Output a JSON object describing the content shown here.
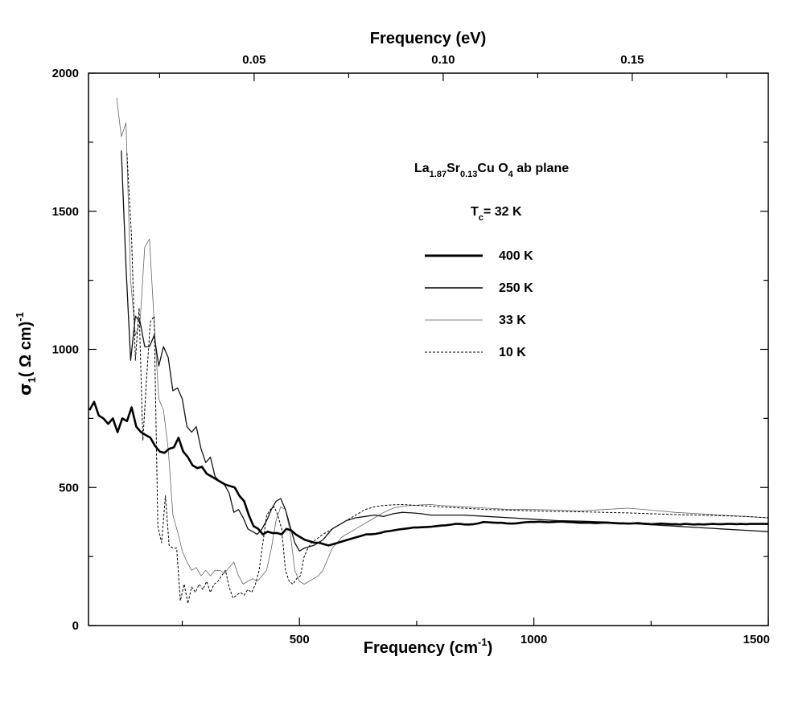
{
  "chart_data": {
    "type": "line",
    "xlabel": "Frequency (cm",
    "xlabel_sup": "-1",
    "xlabel_end": ")",
    "top_xlabel": "Frequency (eV)",
    "ylabel_sigma": "σ",
    "ylabel_sub": "1",
    "ylabel_mid": "( Ω cm)",
    "ylabel_sup": "-1",
    "xlim": [
      50,
      1500
    ],
    "ylim": [
      0,
      2000
    ],
    "x_ticks": [
      500,
      1000,
      1500
    ],
    "x_tick_labels": [
      "500",
      "1000",
      "1500"
    ],
    "y_ticks": [
      0,
      500,
      1000,
      1500,
      2000
    ],
    "y_tick_labels": [
      "0",
      "500",
      "1000",
      "1500",
      "2000"
    ],
    "top_ticks_ev": [
      0.05,
      0.1,
      0.15
    ],
    "top_tick_labels": [
      "0.05",
      "0.10",
      "0.15"
    ],
    "grid": false,
    "legend_position": "right-center",
    "annotation": {
      "compound": {
        "la": "La",
        "la_sub": "1.87",
        "sr": "Sr",
        "sr_sub": "0.13",
        "cuo": "Cu O",
        "o_sub": "4",
        "rest": " ab plane"
      },
      "tc": {
        "t": "T",
        "sub": "c",
        "rest": "= 32 K"
      }
    },
    "series": [
      {
        "name": "400 K",
        "style": "thick",
        "x": [
          52,
          62,
          72,
          82,
          92,
          102,
          112,
          122,
          132,
          142,
          152,
          162,
          172,
          182,
          192,
          202,
          212,
          222,
          232,
          242,
          252,
          262,
          272,
          282,
          292,
          302,
          312,
          322,
          332,
          342,
          352,
          362,
          372,
          382,
          392,
          402,
          412,
          422,
          432,
          442,
          452,
          462,
          472,
          482,
          492,
          502,
          512,
          522,
          532,
          542,
          552,
          562,
          572,
          582,
          592,
          602,
          612,
          622,
          632,
          642,
          652,
          662,
          672,
          682,
          692,
          702,
          712,
          722,
          732,
          742,
          752,
          762,
          772,
          782,
          792,
          802,
          812,
          822,
          832,
          842,
          852,
          862,
          872,
          882,
          892,
          902,
          912,
          922,
          932,
          942,
          952,
          962,
          972,
          982,
          992,
          1002,
          1012,
          1022,
          1032,
          1042,
          1052,
          1062,
          1072,
          1082,
          1092,
          1102,
          1112,
          1122,
          1132,
          1142,
          1152,
          1162,
          1172,
          1182,
          1192,
          1202,
          1212,
          1222,
          1232,
          1242,
          1252,
          1262,
          1272,
          1282,
          1292,
          1302,
          1312,
          1322,
          1332,
          1342,
          1352,
          1362,
          1372,
          1382,
          1392,
          1402,
          1412,
          1422,
          1432,
          1442,
          1452,
          1462,
          1472,
          1482,
          1492,
          1500
        ],
        "y": [
          780,
          810,
          760,
          750,
          730,
          750,
          700,
          750,
          740,
          790,
          720,
          700,
          690,
          680,
          650,
          630,
          625,
          640,
          645,
          680,
          630,
          610,
          580,
          570,
          575,
          550,
          540,
          530,
          520,
          510,
          505,
          500,
          470,
          450,
          400,
          360,
          350,
          330,
          340,
          335,
          335,
          330,
          350,
          345,
          330,
          320,
          310,
          305,
          300,
          300,
          295,
          290,
          295,
          300,
          305,
          310,
          315,
          320,
          325,
          330,
          330,
          332,
          335,
          340,
          342,
          345,
          348,
          350,
          352,
          355,
          355,
          356,
          357,
          358,
          360,
          362,
          363,
          365,
          368,
          368,
          366,
          366,
          367,
          370,
          375,
          374,
          373,
          372,
          372,
          370,
          369,
          370,
          372,
          374,
          375,
          375,
          376,
          375,
          374,
          375,
          376,
          376,
          375,
          374,
          373,
          372,
          373,
          372,
          371,
          372,
          373,
          372,
          371,
          370,
          370,
          369,
          370,
          371,
          369,
          368,
          367,
          368,
          369,
          368,
          367,
          367,
          366,
          368,
          367,
          366,
          367,
          366,
          367,
          368,
          367,
          367,
          368,
          368,
          367,
          368,
          367,
          368,
          368,
          368,
          368,
          368
        ],
        "color": "#000000"
      },
      {
        "name": "250 K",
        "style": "medium",
        "x": [
          120,
          130,
          140,
          150,
          160,
          170,
          180,
          190,
          200,
          210,
          220,
          230,
          240,
          250,
          260,
          270,
          280,
          290,
          300,
          310,
          320,
          330,
          340,
          350,
          360,
          370,
          380,
          390,
          400,
          410,
          420,
          430,
          440,
          450,
          460,
          470,
          480,
          490,
          500,
          510,
          520,
          530,
          540,
          550,
          560,
          570,
          580,
          590,
          600,
          620,
          640,
          660,
          680,
          700,
          720,
          740,
          760,
          780,
          800,
          850,
          900,
          950,
          1000,
          1050,
          1100,
          1150,
          1200,
          1250,
          1300,
          1350,
          1400,
          1450,
          1500
        ],
        "y": [
          1720,
          1300,
          960,
          1120,
          1100,
          1010,
          1010,
          1050,
          940,
          1010,
          970,
          850,
          860,
          820,
          720,
          700,
          720,
          640,
          590,
          610,
          540,
          520,
          510,
          480,
          410,
          420,
          390,
          350,
          340,
          330,
          350,
          380,
          420,
          450,
          460,
          420,
          360,
          300,
          270,
          280,
          285,
          290,
          300,
          310,
          330,
          350,
          360,
          370,
          380,
          390,
          395,
          400,
          395,
          405,
          410,
          408,
          405,
          400,
          400,
          400,
          395,
          390,
          385,
          380,
          378,
          375,
          370,
          365,
          360,
          355,
          350,
          345,
          340
        ],
        "color": "#000000"
      },
      {
        "name": "33 K",
        "style": "thin",
        "x": [
          110,
          120,
          130,
          140,
          150,
          160,
          170,
          180,
          190,
          200,
          210,
          220,
          230,
          240,
          250,
          260,
          270,
          280,
          290,
          300,
          310,
          320,
          330,
          340,
          350,
          360,
          370,
          380,
          390,
          400,
          410,
          420,
          430,
          440,
          450,
          460,
          470,
          480,
          490,
          500,
          510,
          520,
          530,
          540,
          550,
          560,
          570,
          580,
          590,
          600,
          620,
          640,
          660,
          680,
          700,
          720,
          740,
          760,
          780,
          800,
          850,
          900,
          950,
          1000,
          1050,
          1100,
          1150,
          1200,
          1250,
          1300,
          1350,
          1400,
          1450,
          1500
        ],
        "y": [
          1910,
          1770,
          1820,
          1250,
          1050,
          1100,
          1370,
          1400,
          1100,
          820,
          780,
          640,
          400,
          340,
          270,
          230,
          200,
          210,
          180,
          200,
          180,
          200,
          200,
          190,
          210,
          230,
          180,
          150,
          160,
          170,
          160,
          180,
          200,
          280,
          380,
          430,
          420,
          340,
          200,
          160,
          150,
          160,
          170,
          180,
          200,
          240,
          280,
          300,
          320,
          330,
          350,
          370,
          390,
          410,
          425,
          432,
          435,
          437,
          438,
          435,
          430,
          425,
          420,
          420,
          418,
          415,
          420,
          425,
          418,
          410,
          405,
          400,
          395,
          390
        ],
        "color": "#000000"
      },
      {
        "name": "10 K",
        "style": "dashed",
        "x": [
          132,
          142,
          150,
          158,
          166,
          174,
          182,
          190,
          198,
          206,
          214,
          222,
          230,
          238,
          246,
          254,
          262,
          270,
          278,
          286,
          294,
          302,
          310,
          318,
          326,
          334,
          342,
          350,
          358,
          366,
          374,
          382,
          390,
          398,
          406,
          414,
          422,
          430,
          438,
          446,
          454,
          462,
          470,
          478,
          486,
          494,
          502,
          510,
          518,
          526,
          534,
          542,
          550,
          560,
          570,
          580,
          590,
          600,
          620,
          640,
          660,
          680,
          700,
          720,
          740,
          760,
          780,
          800,
          850,
          900,
          950,
          1000,
          1050,
          1100,
          1150,
          1200,
          1250,
          1300,
          1350,
          1400,
          1450,
          1500
        ],
        "y": [
          1710,
          1400,
          960,
          1150,
          670,
          900,
          1100,
          1120,
          360,
          300,
          470,
          290,
          280,
          280,
          90,
          150,
          80,
          140,
          120,
          150,
          130,
          160,
          120,
          150,
          160,
          180,
          200,
          140,
          100,
          110,
          120,
          110,
          130,
          120,
          150,
          200,
          300,
          400,
          420,
          430,
          400,
          350,
          200,
          160,
          150,
          170,
          180,
          250,
          280,
          300,
          310,
          320,
          330,
          340,
          350,
          360,
          370,
          380,
          400,
          420,
          430,
          435,
          437,
          438,
          436,
          434,
          432,
          430,
          425,
          420,
          418,
          415,
          413,
          412,
          410,
          408,
          405,
          402,
          400,
          398,
          395,
          390
        ],
        "color": "#000000"
      }
    ]
  }
}
